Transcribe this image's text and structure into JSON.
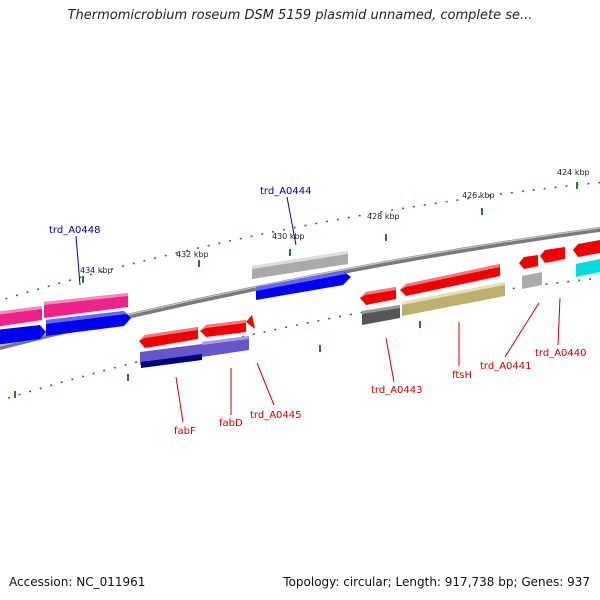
{
  "title": "Thermomicrobium roseum DSM 5159 plasmid unnamed, complete se...",
  "footer": {
    "accession": "Accession: NC_011961",
    "summary": "Topology: circular; Length: 917,738 bp; Genes: 937"
  },
  "scale_labels": [
    "424 kbp",
    "426 kbp",
    "428 kbp",
    "430 kbp",
    "432 kbp",
    "434 kbp"
  ],
  "gene_labels": {
    "trd_A0448": "trd_A0448",
    "trd_A0444": "trd_A0444",
    "fabF": "fabF",
    "fabD": "fabD",
    "trd_A0445": "trd_A0445",
    "trd_A0443": "trd_A0443",
    "ftsH": "ftsH",
    "trd_A0441": "trd_A0441",
    "trd_A0440": "trd_A0440"
  },
  "colors": {
    "forward_label": "#0000aa",
    "reverse_label": "#cc0000",
    "backbone": "#777777",
    "tick": "#2a7a2a",
    "cds_red": "#ee0000",
    "cds_pink": "#ee2288",
    "cds_blue": "#0000ee",
    "cds_grey": "#aaaaaa",
    "cds_dark_grey": "#555555",
    "cds_purple": "#6655cc",
    "cds_navy": "#000077",
    "cds_olive": "#bbb070",
    "cds_cyan": "#00dddd"
  }
}
